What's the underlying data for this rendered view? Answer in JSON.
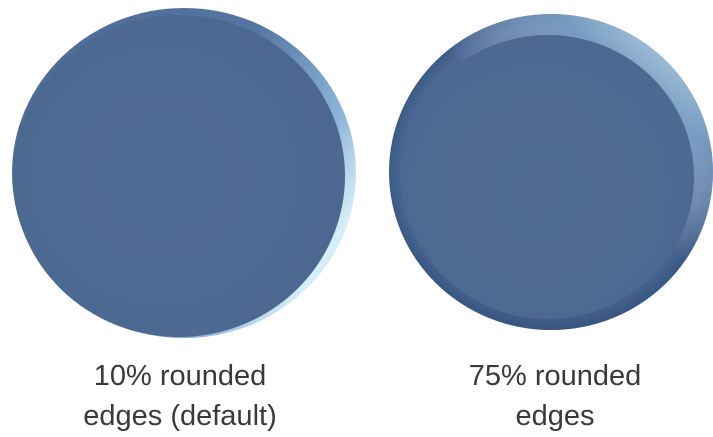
{
  "image": {
    "background": "#ffffff",
    "disc_color": "#4e6b94",
    "highlight_color": "#cbe7f5"
  },
  "examples": [
    {
      "caption_line1": "10% rounded",
      "caption_line2": "edges (default)"
    },
    {
      "caption_line1": "75% rounded",
      "caption_line2": "edges"
    }
  ]
}
